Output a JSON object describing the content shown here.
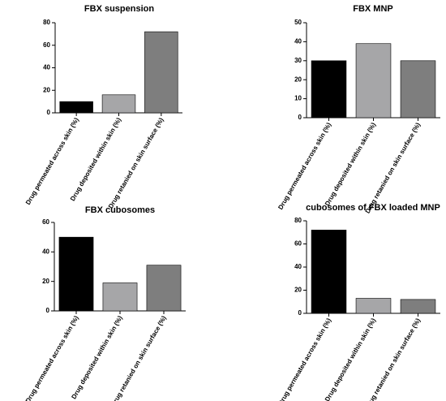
{
  "chart_data": [
    {
      "type": "bar",
      "title": "FBX suspension",
      "categories": [
        "Drug permeated across skin (%)",
        "Drug deposited within skin (%)",
        "Drug retanied on skin surface (%)"
      ],
      "values": [
        10,
        16,
        72
      ],
      "ylim": [
        0,
        80
      ],
      "yticks": [
        0,
        20,
        40,
        60,
        80
      ],
      "colors": [
        "#000000",
        "#a6a6a8",
        "#7e7e7e"
      ]
    },
    {
      "type": "bar",
      "title": "FBX MNP",
      "categories": [
        "Drug permeated across skin (%)",
        "Drug deposited within skin (%)",
        "Drug retanied on skin surface (%)"
      ],
      "values": [
        30,
        39,
        30
      ],
      "ylim": [
        0,
        50
      ],
      "yticks": [
        0,
        10,
        20,
        30,
        40,
        50
      ],
      "colors": [
        "#000000",
        "#a6a6a8",
        "#7e7e7e"
      ]
    },
    {
      "type": "bar",
      "title": "FBX cubosomes",
      "categories": [
        "Drug permeated across skin (%)",
        "Drug deposited within skin (%)",
        "Drug retanied on skin surface (%)"
      ],
      "values": [
        50,
        19,
        31
      ],
      "ylim": [
        0,
        60
      ],
      "yticks": [
        0,
        20,
        40,
        60
      ],
      "colors": [
        "#000000",
        "#a6a6a8",
        "#7e7e7e"
      ]
    },
    {
      "type": "bar",
      "title": "cubosomes of FBX loaded MNP",
      "categories": [
        "Drug permeated across skin (%)",
        "Drug deposited within skin (%)",
        "Drug retanied on skin surface (%)"
      ],
      "values": [
        72,
        13,
        12
      ],
      "ylim": [
        0,
        80
      ],
      "yticks": [
        0,
        20,
        40,
        60,
        80
      ],
      "colors": [
        "#000000",
        "#a6a6a8",
        "#7e7e7e"
      ]
    }
  ]
}
